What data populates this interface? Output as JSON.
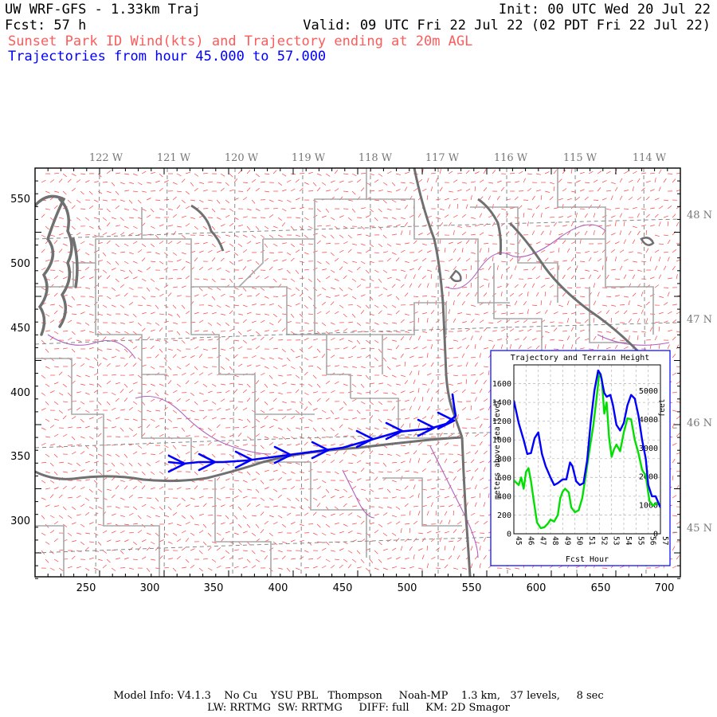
{
  "header": {
    "model_title": "UW WRF-GFS - 1.33km Traj",
    "init": "Init: 00 UTC Wed 20 Jul 22",
    "fcst": "Fcst:   57 h",
    "valid": "Valid: 09 UTC Fri 22 Jul 22 (02 PDT Fri 22 Jul 22)",
    "field_description": "Sunset Park ID Wind(kts) and Trajectory ending at 20m AGL",
    "trajectory_range": "Trajectories from hour  45.000 to  57.000"
  },
  "map": {
    "longitude_labels": [
      "122 W",
      "121 W",
      "120 W",
      "119 W",
      "118 W",
      "117 W",
      "116 W",
      "115 W",
      "114 W"
    ],
    "latitude_labels": [
      "48 N",
      "47 N",
      "46 N",
      "45 N"
    ],
    "x_axis_ticks": [
      250,
      300,
      350,
      400,
      450,
      500,
      550,
      600,
      650,
      700
    ],
    "y_axis_ticks": [
      300,
      350,
      400,
      450,
      500,
      550
    ],
    "colors": {
      "wind_barbs": "#ff4040",
      "trajectory": "#0000ff",
      "state_border": "#707070",
      "county_border": "#a8a8a8",
      "rivers": "#b060c0",
      "lat_lon_grid": "#888888"
    }
  },
  "inset": {
    "title": "Trajectory and Terrain Height",
    "ylabel_left": "meters above sea level",
    "ylabel_right": "feet",
    "xlabel": "Fcst Hour",
    "left_ticks": [
      0,
      200,
      400,
      600,
      800,
      1000,
      1200,
      1400,
      1600
    ],
    "right_ticks": [
      0,
      1000,
      2000,
      3000,
      4000,
      5000
    ],
    "x_ticks": [
      45,
      46,
      47,
      48,
      49,
      50,
      51,
      52,
      53,
      54,
      55,
      56,
      57
    ],
    "colors": {
      "trajectory": "#0000ff",
      "terrain": "#00e000"
    }
  },
  "chart_data": {
    "type": "line",
    "title": "Trajectory and Terrain Height",
    "xlabel": "Fcst Hour",
    "ylabel": "meters above sea level",
    "y2label": "feet",
    "xlim": [
      45,
      57
    ],
    "ylim": [
      0,
      1800
    ],
    "series": [
      {
        "x": [
          45,
          45.4,
          45.8,
          46.1,
          46.4,
          46.7,
          47,
          47.3,
          47.6,
          48,
          48.3,
          48.6,
          49,
          49.3,
          49.6,
          49.8,
          50.1,
          50.4,
          50.7,
          51,
          51.3,
          51.6,
          51.9,
          52.1,
          52.4,
          52.6,
          52.9,
          53.1,
          53.4,
          53.7,
          54,
          54.3,
          54.6,
          54.9,
          55.2,
          55.5,
          55.8,
          56,
          56.3,
          56.6,
          57
        ],
        "values": [
          1420,
          1180,
          1000,
          850,
          860,
          1020,
          1080,
          850,
          720,
          600,
          520,
          540,
          580,
          580,
          760,
          720,
          560,
          520,
          540,
          780,
          1200,
          1530,
          1740,
          1700,
          1500,
          1460,
          1480,
          1380,
          1160,
          1100,
          1180,
          1370,
          1480,
          1440,
          1260,
          1000,
          800,
          520,
          400,
          400,
          280
        ]
      },
      {
        "x": [
          45,
          45.4,
          45.6,
          45.8,
          46,
          46.2,
          46.4,
          46.6,
          46.9,
          47.2,
          47.5,
          47.8,
          48,
          48.3,
          48.6,
          48.8,
          49,
          49.2,
          49.5,
          49.7,
          50,
          50.3,
          50.6,
          50.9,
          51.2,
          51.5,
          51.8,
          52,
          52.2,
          52.4,
          52.6,
          52.8,
          53,
          53.2,
          53.4,
          53.7,
          54,
          54.3,
          54.6,
          54.9,
          55.2,
          55.5,
          55.8,
          56.1,
          56.4,
          56.7,
          57
        ],
        "values": [
          570,
          520,
          600,
          480,
          660,
          700,
          560,
          380,
          120,
          60,
          70,
          110,
          150,
          130,
          200,
          380,
          450,
          480,
          440,
          280,
          230,
          250,
          380,
          640,
          900,
          1150,
          1480,
          1720,
          1650,
          1280,
          1400,
          1020,
          820,
          900,
          950,
          880,
          1080,
          1230,
          1220,
          1000,
          860,
          680,
          620,
          350,
          300,
          330,
          300
        ]
      }
    ]
  },
  "footer": {
    "line1": "Model Info: V4.1.3    No Cu    YSU PBL   Thompson     Noah-MP    1.3 km,   37 levels,     8 sec",
    "line2": "LW: RRTMG  SW: RRTMG     DIFF: full     KM: 2D Smagor"
  }
}
